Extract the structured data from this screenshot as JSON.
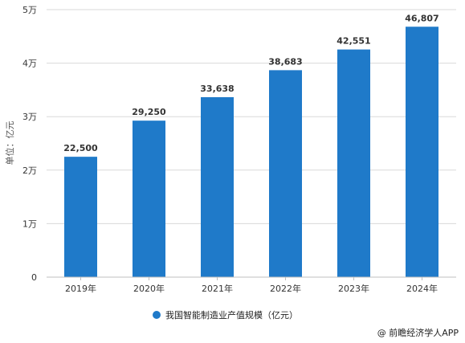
{
  "chart_data": {
    "type": "bar",
    "categories": [
      "2019年",
      "2020年",
      "2021年",
      "2022年",
      "2023年",
      "2024年"
    ],
    "series": [
      {
        "name": "我国智能制造业产值规模（亿元）",
        "values": [
          22500,
          29250,
          33638,
          38683,
          42551,
          46807
        ],
        "labels": [
          "22,500",
          "29,250",
          "33,638",
          "38,683",
          "42,551",
          "46,807"
        ],
        "color": "#1f7ac9"
      }
    ],
    "ylabel": "单位：亿元",
    "ylim": [
      0,
      50000
    ],
    "yticks": [
      {
        "value": 0,
        "label": "0"
      },
      {
        "value": 10000,
        "label": "1万"
      },
      {
        "value": 20000,
        "label": "2万"
      },
      {
        "value": 30000,
        "label": "3万"
      },
      {
        "value": 40000,
        "label": "4万"
      },
      {
        "value": 50000,
        "label": "5万"
      }
    ],
    "grid": true,
    "legend_position": "bottom-center"
  },
  "source": "@ 前瞻经济学人APP"
}
